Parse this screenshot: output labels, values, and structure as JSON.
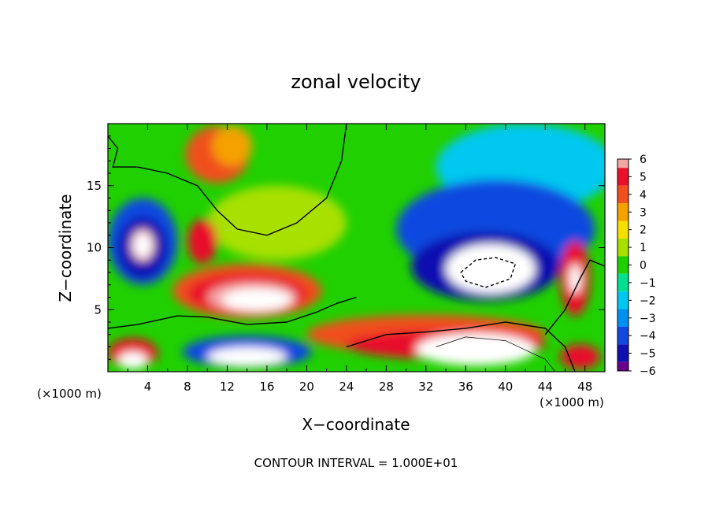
{
  "chart_data": {
    "type": "heatmap",
    "title": "zonal velocity",
    "xlabel": "X−coordinate",
    "ylabel": "Z−coordinate",
    "x_unit_left": "(×1000 m)",
    "x_unit_right": "(×1000 m)",
    "footer": "CONTOUR INTERVAL = 1.000E+01",
    "xlim": [
      0,
      50
    ],
    "ylim": [
      0,
      20
    ],
    "x_ticks": [
      4,
      8,
      12,
      16,
      20,
      24,
      28,
      32,
      36,
      40,
      44,
      48
    ],
    "y_ticks": [
      5,
      10,
      15
    ],
    "colorbar": {
      "levels": [
        6,
        5,
        4,
        3,
        2,
        1,
        0,
        -1,
        -2,
        -3,
        -4,
        -5,
        -6
      ],
      "labels": [
        "6",
        "5",
        "4",
        "3",
        "2",
        "1",
        "0",
        "−1",
        "−2",
        "−3",
        "−4",
        "−5",
        "−6"
      ],
      "colors": [
        "#f4a6a6",
        "#e8102a",
        "#f0501e",
        "#f5a100",
        "#f5e000",
        "#a8e000",
        "#20d000",
        "#00e090",
        "#00c8f0",
        "#0090f0",
        "#1048e0",
        "#1010b0",
        "#6a008a"
      ]
    },
    "background_color": "#20d000",
    "features": [
      {
        "label": "w1",
        "color": "#f0501e",
        "x": 11,
        "y": 17.5,
        "rx": 3.2,
        "ry": 2.3
      },
      {
        "label": "w2",
        "color": "#f5a100",
        "x": 12.5,
        "y": 18.2,
        "rx": 2.0,
        "ry": 1.6
      },
      {
        "label": "w3",
        "color": "#a8e000",
        "x": 17,
        "y": 12,
        "rx": 7,
        "ry": 3
      },
      {
        "label": "c1",
        "color": "#00c8f0",
        "x": 42,
        "y": 16.5,
        "rx": 9,
        "ry": 3.5
      },
      {
        "label": "c2",
        "color": "#1048e0",
        "x": 39,
        "y": 11.5,
        "rx": 10,
        "ry": 4
      },
      {
        "label": "c3",
        "color": "#1010b0",
        "x": 38,
        "y": 8.5,
        "rx": 7.5,
        "ry": 2.8
      },
      {
        "label": "c4",
        "color": "#1048e0",
        "x": 3.5,
        "y": 10.5,
        "rx": 3.5,
        "ry": 3.5
      },
      {
        "label": "c5",
        "color": "#1010b0",
        "x": 3.5,
        "y": 10,
        "rx": 2.5,
        "ry": 2.5
      },
      {
        "label": "c6",
        "color": "#f4a6a6",
        "x": 3.5,
        "y": 10.2,
        "rx": 1.2,
        "ry": 1.3
      },
      {
        "label": "c7",
        "color": "#ffffff",
        "x": 3.5,
        "y": 10.2,
        "rx": 0.9,
        "ry": 1.0
      },
      {
        "label": "r1",
        "color": "#f0501e",
        "x": 14,
        "y": 6.5,
        "rx": 7.5,
        "ry": 2.2
      },
      {
        "label": "r2",
        "color": "#e8102a",
        "x": 14,
        "y": 6.3,
        "rx": 6,
        "ry": 1.6
      },
      {
        "label": "r3",
        "color": "#f4a6a6",
        "x": 14.5,
        "y": 6.0,
        "rx": 4.5,
        "ry": 1.2
      },
      {
        "label": "r4",
        "color": "#ffffff",
        "x": 15,
        "y": 5.8,
        "rx": 3.5,
        "ry": 0.9
      },
      {
        "label": "r5",
        "color": "#e8102a",
        "x": 9.5,
        "y": 10.5,
        "rx": 1.5,
        "ry": 1.8
      },
      {
        "label": "c8",
        "color": "#ffffff",
        "x": 38.5,
        "y": 8.3,
        "rx": 4.5,
        "ry": 2.0
      },
      {
        "label": "b1",
        "color": "#f0501e",
        "x": 32,
        "y": 3,
        "rx": 12,
        "ry": 1.6
      },
      {
        "label": "b2",
        "color": "#e8102a",
        "x": 34,
        "y": 2.2,
        "rx": 10,
        "ry": 1.2
      },
      {
        "label": "b3",
        "color": "#ffffff",
        "x": 37,
        "y": 1.8,
        "rx": 6,
        "ry": 1.3
      },
      {
        "label": "b4",
        "color": "#1048e0",
        "x": 14,
        "y": 1.6,
        "rx": 6.5,
        "ry": 1.3
      },
      {
        "label": "b5",
        "color": "#ffffff",
        "x": 14,
        "y": 1.2,
        "rx": 4,
        "ry": 0.8
      },
      {
        "label": "b6",
        "color": "#e8102a",
        "x": 2.5,
        "y": 1.5,
        "rx": 2.5,
        "ry": 1.2
      },
      {
        "label": "b7",
        "color": "#ffffff",
        "x": 2.5,
        "y": 0.9,
        "rx": 1.5,
        "ry": 0.7
      },
      {
        "label": "b8",
        "color": "#e8102a",
        "x": 47,
        "y": 7.5,
        "rx": 1.5,
        "ry": 3
      },
      {
        "label": "b9",
        "color": "#ffffff",
        "x": 47,
        "y": 7.5,
        "rx": 0.6,
        "ry": 1.2
      },
      {
        "label": "b10",
        "color": "#e8102a",
        "x": 47.5,
        "y": 1.2,
        "rx": 2,
        "ry": 1
      }
    ],
    "contours": [
      {
        "style": "solid",
        "points": [
          [
            24,
            20
          ],
          [
            23.5,
            17
          ],
          [
            22,
            14
          ],
          [
            19,
            12
          ],
          [
            16,
            11
          ],
          [
            13,
            11.5
          ],
          [
            11,
            13
          ],
          [
            9,
            15
          ],
          [
            6,
            16
          ],
          [
            3,
            16.5
          ],
          [
            0.5,
            16.5
          ],
          [
            1,
            18
          ],
          [
            0,
            19
          ]
        ]
      },
      {
        "style": "solid",
        "points": [
          [
            0,
            3.5
          ],
          [
            3,
            3.8
          ],
          [
            7,
            4.5
          ],
          [
            10,
            4.4
          ],
          [
            14,
            3.8
          ],
          [
            18,
            4.0
          ],
          [
            21,
            4.8
          ],
          [
            23,
            5.5
          ],
          [
            25,
            6.0
          ]
        ]
      },
      {
        "style": "solid",
        "points": [
          [
            44,
            3.0
          ],
          [
            46,
            5.0
          ],
          [
            47.5,
            7.5
          ],
          [
            48.5,
            9.0
          ],
          [
            50,
            8.5
          ]
        ]
      },
      {
        "style": "solid",
        "points": [
          [
            24,
            2.0
          ],
          [
            28,
            3.0
          ],
          [
            32,
            3.2
          ],
          [
            36,
            3.5
          ],
          [
            40,
            4.0
          ],
          [
            44,
            3.5
          ],
          [
            46,
            2.0
          ],
          [
            47,
            0
          ]
        ]
      },
      {
        "style": "dashed",
        "points": [
          [
            35.5,
            8
          ],
          [
            37,
            9
          ],
          [
            39,
            9.2
          ],
          [
            41,
            8.7
          ],
          [
            40.5,
            7.5
          ],
          [
            38,
            6.8
          ],
          [
            36,
            7.3
          ],
          [
            35.5,
            8
          ]
        ]
      },
      {
        "style": "thin",
        "points": [
          [
            33,
            2
          ],
          [
            36,
            2.8
          ],
          [
            40,
            2.5
          ],
          [
            44,
            1.0
          ],
          [
            45,
            0
          ]
        ]
      }
    ]
  }
}
